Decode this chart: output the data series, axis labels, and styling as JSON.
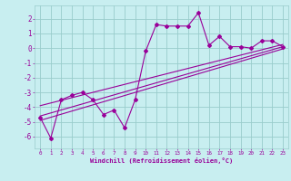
{
  "xlabel": "Windchill (Refroidissement éolien,°C)",
  "bg_color": "#c8eef0",
  "grid_color": "#99cccc",
  "line_color": "#990099",
  "x_data": [
    0,
    1,
    2,
    3,
    4,
    5,
    6,
    7,
    8,
    9,
    10,
    11,
    12,
    13,
    14,
    15,
    16,
    17,
    18,
    19,
    20,
    21,
    22,
    23
  ],
  "y_scatter": [
    -4.7,
    -6.1,
    -3.5,
    -3.2,
    -3.0,
    -3.5,
    -4.5,
    -4.2,
    -5.4,
    -3.5,
    -0.2,
    1.6,
    1.5,
    1.5,
    1.5,
    2.4,
    0.2,
    0.8,
    0.1,
    0.1,
    0.0,
    0.5,
    0.5,
    0.1
  ],
  "reg1": [
    -4.9,
    -0.05
  ],
  "reg2": [
    -4.6,
    0.1
  ],
  "reg3": [
    -3.9,
    0.25
  ],
  "xlim": [
    -0.5,
    23.5
  ],
  "ylim": [
    -6.8,
    2.9
  ],
  "yticks": [
    -6,
    -5,
    -4,
    -3,
    -2,
    -1,
    0,
    1,
    2
  ],
  "xticks": [
    0,
    1,
    2,
    3,
    4,
    5,
    6,
    7,
    8,
    9,
    10,
    11,
    12,
    13,
    14,
    15,
    16,
    17,
    18,
    19,
    20,
    21,
    22,
    23
  ]
}
